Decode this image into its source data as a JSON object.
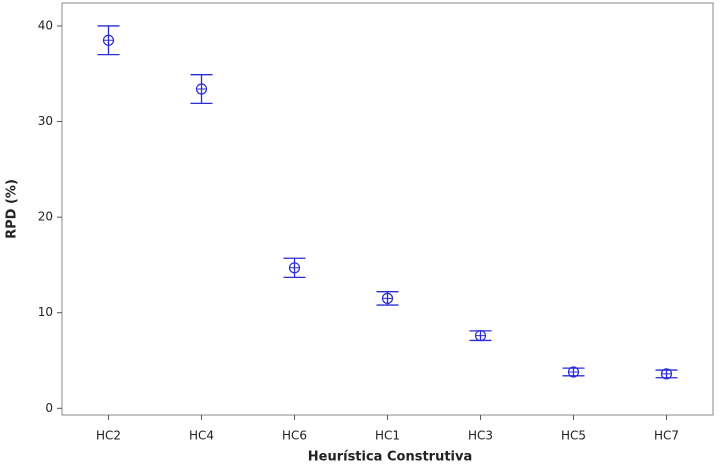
{
  "chart_data": {
    "type": "interval",
    "xlabel": "Heurística Construtiva",
    "ylabel": "RPD (%)",
    "categories": [
      "HC2",
      "HC4",
      "HC6",
      "HC1",
      "HC3",
      "HC5",
      "HC7"
    ],
    "series": [
      {
        "color": "#2b2bd6",
        "values": [
          38.5,
          33.4,
          14.7,
          11.5,
          7.6,
          3.8,
          3.6
        ],
        "errors": [
          1.5,
          1.5,
          1.0,
          0.7,
          0.5,
          0.4,
          0.4
        ]
      }
    ],
    "ylim": [
      -0.7,
      42.4
    ],
    "yticks": [
      0,
      10,
      20,
      30,
      40
    ],
    "grid": false
  }
}
